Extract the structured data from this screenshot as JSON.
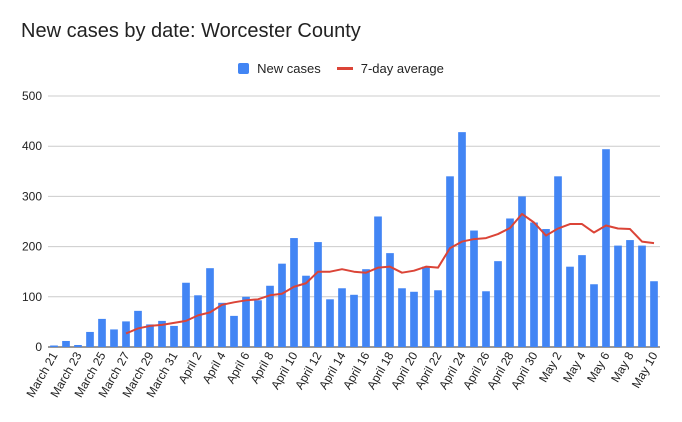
{
  "title": "New cases by date: Worcester County",
  "colors": {
    "bars": "#4285f4",
    "line": "#db4437",
    "grid": "#cccccc",
    "axis": "#333333"
  },
  "legend": {
    "bar_label": "New cases",
    "line_label": "7-day average",
    "position": "top"
  },
  "chart_data": {
    "type": "bar",
    "title": "New cases by date: Worcester County",
    "xlabel": "",
    "ylabel": "",
    "ylim": [
      0,
      500
    ],
    "yticks": [
      0,
      100,
      200,
      300,
      400,
      500
    ],
    "grid": true,
    "legend_position": "top",
    "x_tick_labels": [
      "March 21",
      "March 23",
      "March 25",
      "March 27",
      "March 29",
      "March 31",
      "April 2",
      "April 4",
      "April 6",
      "April 8",
      "April 10",
      "April 12",
      "April 14",
      "April 16",
      "April 18",
      "April 20",
      "April 22",
      "April 24",
      "April 26",
      "April 28",
      "April 30",
      "May 2",
      "May 4",
      "May 6",
      "May 8",
      "May 10"
    ],
    "categories": [
      "March 21",
      "March 22",
      "March 23",
      "March 24",
      "March 25",
      "March 26",
      "March 27",
      "March 28",
      "March 29",
      "March 30",
      "March 31",
      "April 1",
      "April 2",
      "April 3",
      "April 4",
      "April 5",
      "April 6",
      "April 7",
      "April 8",
      "April 9",
      "April 10",
      "April 11",
      "April 12",
      "April 13",
      "April 14",
      "April 15",
      "April 16",
      "April 17",
      "April 18",
      "April 19",
      "April 20",
      "April 21",
      "April 22",
      "April 23",
      "April 24",
      "April 25",
      "April 26",
      "April 27",
      "April 28",
      "April 29",
      "April 30",
      "May 1",
      "May 2",
      "May 3",
      "May 4",
      "May 5",
      "May 6",
      "May 7",
      "May 8",
      "May 9",
      "May 10"
    ],
    "series": [
      {
        "name": "New cases",
        "type": "bar",
        "values": [
          3,
          12,
          4,
          30,
          56,
          35,
          51,
          72,
          45,
          52,
          42,
          128,
          103,
          157,
          88,
          62,
          100,
          93,
          122,
          166,
          217,
          142,
          209,
          95,
          117,
          104,
          155,
          260,
          187,
          117,
          110,
          160,
          113,
          340,
          428,
          232,
          111,
          171,
          256,
          300,
          248,
          235,
          340,
          160,
          183,
          125,
          394,
          202,
          213,
          202,
          131
        ]
      },
      {
        "name": "7-day average",
        "type": "line",
        "values": [
          null,
          null,
          null,
          null,
          null,
          null,
          27,
          37,
          42,
          44,
          48,
          52,
          63,
          69,
          84,
          89,
          93,
          95,
          103,
          106,
          120,
          127,
          150,
          150,
          155,
          150,
          148,
          158,
          160,
          148,
          152,
          160,
          158,
          197,
          210,
          215,
          217,
          225,
          237,
          265,
          248,
          222,
          236,
          245,
          245,
          228,
          242,
          236,
          235,
          210,
          207
        ]
      }
    ]
  }
}
